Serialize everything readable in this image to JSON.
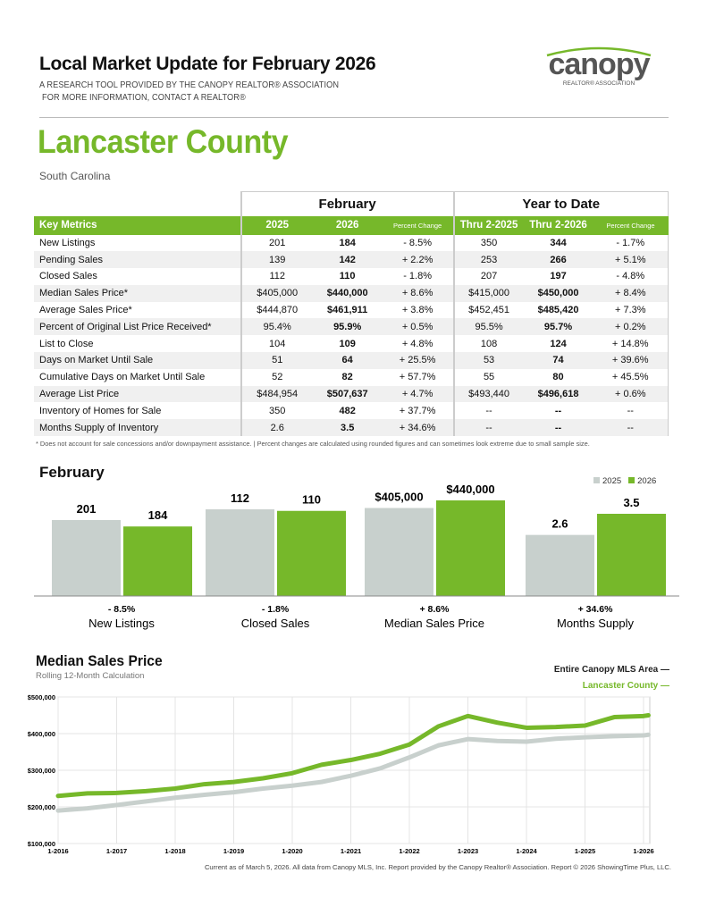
{
  "header": {
    "title": "Local Market Update for February 2026",
    "line1": "A RESEARCH TOOL PROVIDED BY THE CANOPY REALTOR® ASSOCIATION",
    "line2": "FOR MORE INFORMATION, CONTACT A REALTOR®",
    "logo_text": "canopy",
    "logo_sub": "REALTOR® ASSOCIATION"
  },
  "area": {
    "name": "Lancaster County",
    "state": "South Carolina"
  },
  "colors": {
    "green": "#76b82a",
    "gray": "#c8d0cd"
  },
  "table": {
    "groups": [
      "February",
      "Year to Date"
    ],
    "headers": [
      "Key Metrics",
      "2025",
      "2026",
      "Percent Change",
      "Thru 2-2025",
      "Thru 2-2026",
      "Percent Change"
    ],
    "rows": [
      [
        "New Listings",
        "201",
        "184",
        "- 8.5%",
        "350",
        "344",
        "- 1.7%"
      ],
      [
        "Pending Sales",
        "139",
        "142",
        "+ 2.2%",
        "253",
        "266",
        "+ 5.1%"
      ],
      [
        "Closed Sales",
        "112",
        "110",
        "- 1.8%",
        "207",
        "197",
        "- 4.8%"
      ],
      [
        "Median Sales Price*",
        "$405,000",
        "$440,000",
        "+ 8.6%",
        "$415,000",
        "$450,000",
        "+ 8.4%"
      ],
      [
        "Average Sales Price*",
        "$444,870",
        "$461,911",
        "+ 3.8%",
        "$452,451",
        "$485,420",
        "+ 7.3%"
      ],
      [
        "Percent of Original List Price Received*",
        "95.4%",
        "95.9%",
        "+ 0.5%",
        "95.5%",
        "95.7%",
        "+ 0.2%"
      ],
      [
        "List to Close",
        "104",
        "109",
        "+ 4.8%",
        "108",
        "124",
        "+ 14.8%"
      ],
      [
        "Days on Market Until Sale",
        "51",
        "64",
        "+ 25.5%",
        "53",
        "74",
        "+ 39.6%"
      ],
      [
        "Cumulative Days on Market Until Sale",
        "52",
        "82",
        "+ 57.7%",
        "55",
        "80",
        "+ 45.5%"
      ],
      [
        "Average List Price",
        "$484,954",
        "$507,637",
        "+ 4.7%",
        "$493,440",
        "$496,618",
        "+ 0.6%"
      ],
      [
        "Inventory of Homes for Sale",
        "350",
        "482",
        "+ 37.7%",
        "--",
        "--",
        "--"
      ],
      [
        "Months Supply of Inventory",
        "2.6",
        "3.5",
        "+ 34.6%",
        "--",
        "--",
        "--"
      ]
    ],
    "footnote": "* Does not account for sale concessions and/or downpayment assistance.  |  Percent changes are calculated using rounded figures and can sometimes look extreme due to small sample size."
  },
  "chart_data": [
    {
      "type": "bar",
      "title": "February",
      "legend": [
        "2025",
        "2026"
      ],
      "legend_position": "top-right",
      "categories": [
        "New Listings",
        "Closed Sales",
        "Median Sales Price",
        "Months Supply"
      ],
      "series": [
        {
          "name": "2025",
          "values": [
            201,
            112,
            405000,
            2.6
          ],
          "labels": [
            "201",
            "112",
            "$405,000",
            "2.6"
          ]
        },
        {
          "name": "2026",
          "values": [
            184,
            110,
            440000,
            3.5
          ],
          "labels": [
            "184",
            "110",
            "$440,000",
            "3.5"
          ]
        }
      ],
      "changes": [
        "- 8.5%",
        "- 1.8%",
        "+ 8.6%",
        "+ 34.6%"
      ]
    },
    {
      "type": "line",
      "title": "Median Sales Price",
      "subtitle": "Rolling 12-Month Calculation",
      "ylim": [
        100000,
        500000
      ],
      "yticks": [
        "$100,000",
        "$200,000",
        "$300,000",
        "$400,000",
        "$500,000"
      ],
      "xticks": [
        "1-2016",
        "1-2017",
        "1-2018",
        "1-2019",
        "1-2020",
        "1-2021",
        "1-2022",
        "1-2023",
        "1-2024",
        "1-2025",
        "1-2026"
      ],
      "x": [
        "2016-01",
        "2016-07",
        "2017-01",
        "2017-07",
        "2018-01",
        "2018-07",
        "2019-01",
        "2019-07",
        "2020-01",
        "2020-07",
        "2021-01",
        "2021-07",
        "2022-01",
        "2022-07",
        "2023-01",
        "2023-07",
        "2024-01",
        "2024-07",
        "2025-01",
        "2025-07",
        "2026-01",
        "2026-02"
      ],
      "series": [
        {
          "name": "Entire Canopy MLS Area",
          "values": [
            190000,
            196000,
            205000,
            215000,
            225000,
            233000,
            240000,
            250000,
            258000,
            268000,
            285000,
            305000,
            335000,
            368000,
            385000,
            380000,
            378000,
            386000,
            390000,
            393000,
            395000,
            397000
          ]
        },
        {
          "name": "Lancaster County",
          "values": [
            230000,
            237000,
            238000,
            243000,
            250000,
            262000,
            268000,
            278000,
            292000,
            315000,
            328000,
            345000,
            370000,
            420000,
            448000,
            430000,
            416000,
            418000,
            422000,
            445000,
            448000,
            450000
          ]
        }
      ],
      "legend_marks": [
        "—",
        "—"
      ]
    }
  ],
  "footer": "Current as of March 5, 2026. All data from Canopy MLS, Inc. Report provided by the Canopy Realtor® Association. Report © 2026 ShowingTime Plus, LLC."
}
